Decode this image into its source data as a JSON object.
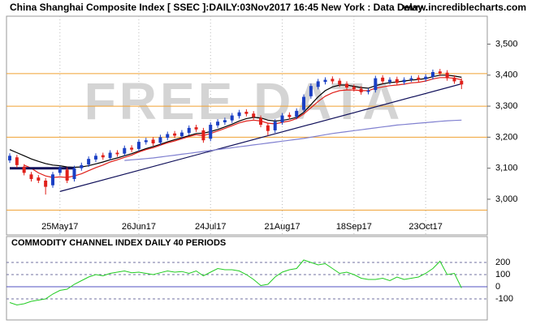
{
  "header": {
    "title": "China Shanghai Composite Index [ SSEC ]:DAILY:03Nov2017 16:45 New York : Data Delay..",
    "site": "www.incrediblecharts.com",
    "watermark": "FREE DATA"
  },
  "chart_data": [
    {
      "type": "candlestick",
      "categories": [
        null,
        null,
        null,
        null,
        null,
        null,
        null,
        "25May17",
        null,
        null,
        null,
        null,
        null,
        null,
        null,
        null,
        null,
        null,
        "26Jun17",
        null,
        null,
        null,
        null,
        null,
        null,
        null,
        null,
        null,
        "24Jul17",
        null,
        null,
        null,
        null,
        null,
        null,
        null,
        null,
        null,
        "21Aug17",
        null,
        null,
        null,
        null,
        null,
        null,
        null,
        null,
        null,
        "18Sep17",
        null,
        null,
        null,
        null,
        null,
        null,
        null,
        null,
        null,
        "23Oct17",
        null,
        null,
        null,
        null,
        null
      ],
      "open": [
        3125,
        3135,
        3105,
        3080,
        3070,
        3060,
        3045,
        3085,
        3095,
        3065,
        3100,
        3112,
        3128,
        3142,
        3133,
        3150,
        3147,
        3166,
        3162,
        3184,
        3192,
        3182,
        3198,
        3212,
        3203,
        3214,
        3232,
        3222,
        3195,
        3238,
        3248,
        3254,
        3268,
        3282,
        3276,
        3262,
        3238,
        3222,
        3248,
        3272,
        3266,
        3288,
        3332,
        3362,
        3378,
        3388,
        3382,
        3372,
        3362,
        3356,
        3346,
        3352,
        3392,
        3378,
        3387,
        3377,
        3386,
        3392,
        3387,
        3394,
        3412,
        3408,
        3392,
        3382
      ],
      "high": [
        3148,
        3143,
        3113,
        3088,
        3078,
        3068,
        3088,
        3108,
        3103,
        3108,
        3118,
        3138,
        3148,
        3150,
        3158,
        3158,
        3173,
        3174,
        3193,
        3198,
        3200,
        3208,
        3218,
        3220,
        3223,
        3238,
        3240,
        3230,
        3248,
        3258,
        3263,
        3278,
        3288,
        3290,
        3284,
        3270,
        3246,
        3258,
        3278,
        3280,
        3293,
        3338,
        3373,
        3388,
        3393,
        3396,
        3390,
        3380,
        3370,
        3364,
        3358,
        3398,
        3400,
        3393,
        3395,
        3393,
        3398,
        3400,
        3403,
        3418,
        3420,
        3416,
        3400,
        3390
      ],
      "low": [
        3117,
        3102,
        3077,
        3057,
        3052,
        3015,
        3037,
        3077,
        3052,
        3057,
        3092,
        3104,
        3120,
        3127,
        3125,
        3137,
        3139,
        3152,
        3154,
        3176,
        3172,
        3174,
        3190,
        3197,
        3195,
        3206,
        3217,
        3182,
        3187,
        3230,
        3240,
        3246,
        3260,
        3267,
        3257,
        3232,
        3205,
        3214,
        3240,
        3257,
        3258,
        3280,
        3324,
        3354,
        3370,
        3372,
        3362,
        3352,
        3347,
        3337,
        3338,
        3344,
        3372,
        3370,
        3367,
        3369,
        3378,
        3377,
        3379,
        3386,
        3397,
        3382,
        3372,
        3355
      ],
      "close": [
        3140,
        3110,
        3085,
        3065,
        3060,
        3040,
        3080,
        3100,
        3060,
        3100,
        3110,
        3130,
        3140,
        3135,
        3150,
        3145,
        3165,
        3160,
        3185,
        3190,
        3180,
        3200,
        3210,
        3205,
        3215,
        3230,
        3225,
        3190,
        3240,
        3250,
        3255,
        3270,
        3280,
        3275,
        3265,
        3240,
        3220,
        3250,
        3270,
        3265,
        3285,
        3330,
        3365,
        3380,
        3385,
        3380,
        3370,
        3360,
        3355,
        3345,
        3350,
        3390,
        3380,
        3385,
        3375,
        3385,
        3390,
        3385,
        3395,
        3410,
        3405,
        3390,
        3380,
        3370
      ],
      "up_color": "#1a3fc4",
      "down_color": "#e0201a",
      "lines": [
        {
          "color": "#000000",
          "values": [
            3160,
            3150,
            3140,
            3130,
            3122,
            3115,
            3110,
            3108,
            3104,
            3103,
            3104,
            3108,
            3114,
            3120,
            3127,
            3133,
            3140,
            3147,
            3155,
            3163,
            3170,
            3177,
            3185,
            3192,
            3198,
            3205,
            3212,
            3213,
            3218,
            3225,
            3233,
            3242,
            3252,
            3260,
            3264,
            3262,
            3255,
            3252,
            3254,
            3258,
            3264,
            3280,
            3305,
            3330,
            3350,
            3362,
            3368,
            3368,
            3364,
            3360,
            3358,
            3366,
            3372,
            3376,
            3378,
            3381,
            3384,
            3386,
            3389,
            3395,
            3400,
            3400,
            3397,
            3393
          ]
        },
        {
          "color": "#e0201a",
          "values": [
            null,
            null,
            3110,
            3100,
            3085,
            3075,
            3070,
            3072,
            3070,
            3075,
            3082,
            3092,
            3102,
            3110,
            3120,
            3127,
            3135,
            3142,
            3152,
            3160,
            3166,
            3174,
            3182,
            3188,
            3195,
            3202,
            3208,
            3205,
            3212,
            3220,
            3228,
            3237,
            3246,
            3252,
            3255,
            3252,
            3245,
            3243,
            3248,
            3252,
            3260,
            3275,
            3295,
            3315,
            3332,
            3343,
            3350,
            3352,
            3352,
            3350,
            3350,
            3358,
            3362,
            3366,
            3368,
            3371,
            3375,
            3377,
            3381,
            3388,
            3392,
            3392,
            3390,
            3385
          ]
        },
        {
          "color": "#8080d0",
          "values": [
            null,
            null,
            null,
            null,
            null,
            null,
            null,
            null,
            null,
            null,
            null,
            null,
            null,
            null,
            null,
            null,
            3125,
            3127,
            3129,
            3131,
            3133,
            3136,
            3139,
            3142,
            3145,
            3148,
            3151,
            3154,
            3157,
            3160,
            3163,
            3166,
            3169,
            3172,
            3175,
            3178,
            3181,
            3184,
            3187,
            3190,
            3193,
            3196,
            3200,
            3204,
            3208,
            3212,
            3215,
            3218,
            3221,
            3224,
            3227,
            3230,
            3233,
            3236,
            3239,
            3241,
            3243,
            3245,
            3247,
            3249,
            3251,
            3253,
            3254,
            3255
          ]
        },
        {
          "color": "#10105a",
          "values": [
            3100,
            3100,
            3100,
            3100,
            3100,
            3100,
            3100,
            3100,
            3100,
            3100,
            null,
            null,
            null,
            null,
            null,
            null,
            null,
            null,
            null,
            null,
            null,
            null,
            null,
            null,
            null,
            null,
            null,
            null,
            null,
            null,
            null,
            null,
            null,
            null,
            null,
            null,
            null,
            null,
            null,
            null,
            null,
            null,
            null,
            null,
            null,
            null,
            null,
            null,
            null,
            null,
            null,
            null,
            null,
            null,
            null,
            null,
            null,
            null,
            null,
            null,
            null,
            null,
            null,
            null
          ]
        }
      ],
      "trend_line": {
        "color": "#10105a",
        "values": [
          null,
          null,
          null,
          null,
          null,
          null,
          null,
          3025,
          null,
          null,
          null,
          null,
          null,
          null,
          null,
          null,
          null,
          null,
          null,
          null,
          null,
          null,
          null,
          null,
          null,
          null,
          null,
          null,
          null,
          null,
          null,
          null,
          null,
          null,
          null,
          null,
          null,
          null,
          null,
          null,
          null,
          null,
          null,
          null,
          null,
          null,
          null,
          null,
          null,
          null,
          null,
          null,
          null,
          null,
          null,
          null,
          null,
          null,
          null,
          null,
          null,
          null,
          null,
          3372
        ]
      },
      "hlines": [
        3405,
        3300,
        3200,
        2965
      ],
      "hline_color": "#f0a030",
      "ylim": [
        2885,
        3590
      ],
      "yticks": [
        {
          "value": 3000,
          "label": "3,000"
        },
        {
          "value": 3100,
          "label": "3,100"
        },
        {
          "value": 3200,
          "label": "3,200"
        },
        {
          "value": 3300,
          "label": "3,300"
        },
        {
          "value": 3400,
          "label": "3,400"
        },
        {
          "value": 3500,
          "label": "3,500"
        }
      ]
    },
    {
      "type": "line",
      "title": "COMMODITY CHANNEL INDEX DAILY 40 PERIODS",
      "color": "#22cc22",
      "values": [
        -130,
        -150,
        -140,
        -120,
        -110,
        -100,
        -60,
        -30,
        -20,
        20,
        50,
        80,
        100,
        90,
        110,
        120,
        130,
        115,
        120,
        110,
        100,
        115,
        130,
        120,
        125,
        110,
        130,
        90,
        120,
        150,
        140,
        140,
        130,
        100,
        60,
        10,
        20,
        80,
        120,
        140,
        150,
        220,
        200,
        180,
        190,
        150,
        110,
        120,
        100,
        70,
        60,
        60,
        70,
        50,
        80,
        60,
        70,
        80,
        110,
        150,
        210,
        100,
        110,
        -10
      ],
      "ylim": [
        -273,
        413
      ],
      "yticks": [
        200,
        100,
        0,
        -100
      ]
    }
  ]
}
